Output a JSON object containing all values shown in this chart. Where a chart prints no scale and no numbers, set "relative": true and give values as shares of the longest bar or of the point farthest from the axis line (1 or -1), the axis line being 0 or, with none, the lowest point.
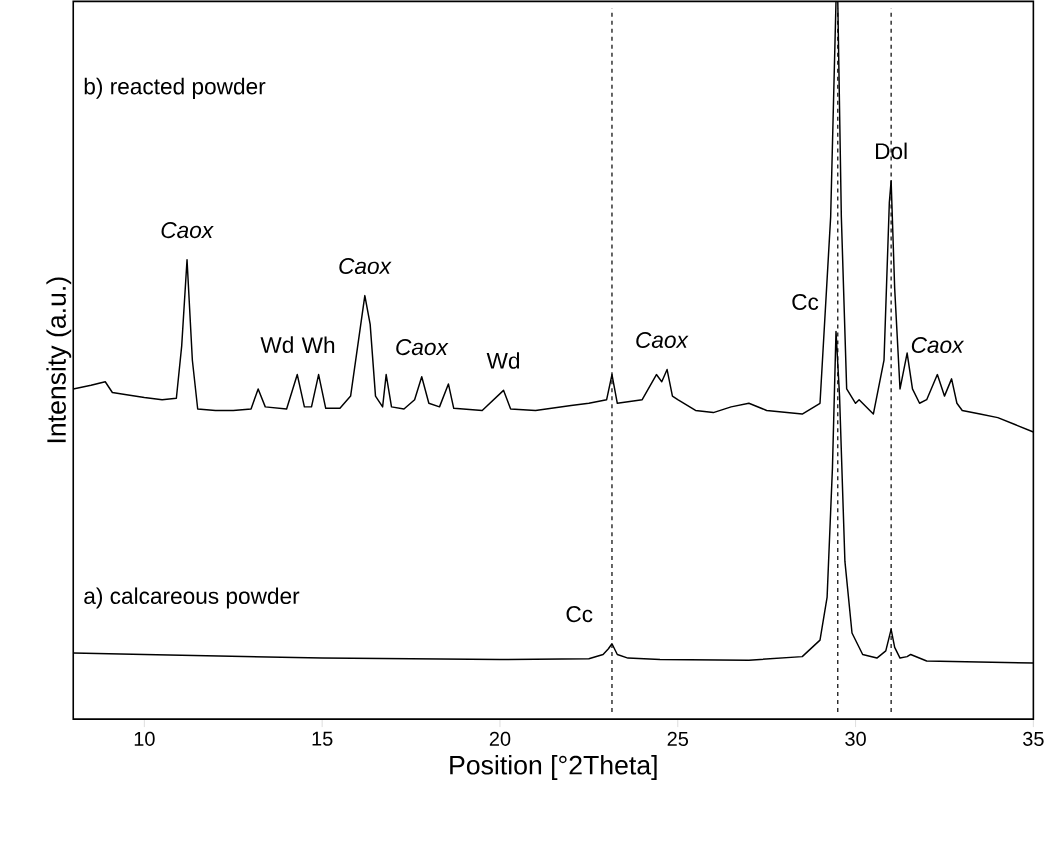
{
  "chart_data": {
    "type": "line",
    "relative": true,
    "xlabel": "Position [°2Theta]",
    "ylabel": "Intensity (a.u.)",
    "xlim": [
      8,
      35
    ],
    "xticks": [
      10,
      15,
      20,
      25,
      30,
      35
    ],
    "tick_labels": "x",
    "legend": false,
    "grid": false,
    "marker": "none",
    "line_style": "solid",
    "series": [
      {
        "color": "#000000",
        "x": [
          8,
          8.5,
          8.9,
          9.1,
          9.5,
          10,
          10.5,
          10.9,
          11.05,
          11.2,
          11.35,
          11.5,
          12,
          12.5,
          13.0,
          13.2,
          13.4,
          14.0,
          14.3,
          14.5,
          14.7,
          14.9,
          15.1,
          15.5,
          15.8,
          16.0,
          16.2,
          16.35,
          16.5,
          16.7,
          16.8,
          16.95,
          17.3,
          17.6,
          17.8,
          18.0,
          18.3,
          18.55,
          18.7,
          19.5,
          20.1,
          20.3,
          21,
          22,
          22.5,
          23.0,
          23.15,
          23.3,
          23.6,
          24.0,
          24.4,
          24.55,
          24.7,
          24.85,
          25.0,
          25.5,
          26,
          26.5,
          27,
          27.5,
          28.5,
          29.0,
          29.3,
          29.45,
          29.5,
          29.6,
          29.75,
          30.0,
          30.1,
          30.5,
          30.8,
          30.95,
          31.0,
          31.1,
          31.25,
          31.45,
          31.6,
          31.8,
          32.0,
          32.3,
          32.5,
          32.7,
          32.85,
          33.0,
          33.5,
          34.0,
          34.5,
          35
        ],
        "values": [
          0.46,
          0.465,
          0.47,
          0.455,
          0.452,
          0.448,
          0.445,
          0.447,
          0.52,
          0.64,
          0.5,
          0.432,
          0.43,
          0.43,
          0.432,
          0.46,
          0.435,
          0.432,
          0.48,
          0.435,
          0.435,
          0.48,
          0.433,
          0.433,
          0.45,
          0.52,
          0.59,
          0.55,
          0.45,
          0.435,
          0.48,
          0.435,
          0.432,
          0.445,
          0.477,
          0.44,
          0.435,
          0.467,
          0.433,
          0.43,
          0.458,
          0.432,
          0.43,
          0.437,
          0.44,
          0.445,
          0.48,
          0.44,
          0.442,
          0.445,
          0.48,
          0.47,
          0.487,
          0.45,
          0.445,
          0.43,
          0.427,
          0.435,
          0.44,
          0.43,
          0.425,
          0.44,
          0.7,
          1.0,
          1.0,
          0.7,
          0.46,
          0.44,
          0.445,
          0.425,
          0.5,
          0.72,
          0.75,
          0.6,
          0.46,
          0.51,
          0.46,
          0.44,
          0.445,
          0.48,
          0.45,
          0.474,
          0.44,
          0.43,
          0.425,
          0.42,
          0.41,
          0.4
        ]
      },
      {
        "color": "#000000",
        "x": [
          8,
          10,
          15,
          20,
          22.5,
          22.9,
          23.05,
          23.15,
          23.3,
          23.6,
          24.5,
          27,
          28.5,
          29.0,
          29.2,
          29.35,
          29.45,
          29.55,
          29.7,
          29.9,
          30.2,
          30.6,
          30.85,
          31.0,
          31.1,
          31.25,
          31.45,
          31.55,
          32,
          35
        ],
        "values": [
          0.092,
          0.09,
          0.085,
          0.083,
          0.084,
          0.09,
          0.098,
          0.105,
          0.09,
          0.085,
          0.083,
          0.082,
          0.087,
          0.11,
          0.17,
          0.35,
          0.54,
          0.45,
          0.22,
          0.12,
          0.09,
          0.085,
          0.095,
          0.125,
          0.1,
          0.085,
          0.087,
          0.09,
          0.081,
          0.078
        ]
      }
    ],
    "ref_lines": [
      {
        "axis": "x",
        "value": 23.15,
        "line_style": "dashed",
        "color": "#000000"
      },
      {
        "axis": "x",
        "value": 29.5,
        "line_style": "dashed",
        "color": "#000000"
      },
      {
        "axis": "x",
        "value": 31.0,
        "line_style": "dashed",
        "color": "#000000"
      }
    ],
    "annotations": [
      "b) reacted powder",
      "a) calcareous powder",
      {
        "text": "*Caox*",
        "x": 11.2,
        "y": 0.64
      },
      {
        "text": "Wd",
        "x": 14.3,
        "y": 0.48
      },
      {
        "text": "Wh",
        "x": 14.9,
        "y": 0.48
      },
      {
        "text": "*Caox*",
        "x": 16.2,
        "y": 0.59
      },
      {
        "text": "*Caox*",
        "x": 17.8,
        "y": 0.477
      },
      {
        "text": "Wd",
        "x": 20.1,
        "y": 0.458
      },
      {
        "text": "*Caox*",
        "x": 24.55,
        "y": 0.487
      },
      {
        "text": "Dol",
        "x": 31.0,
        "y": 0.75
      },
      {
        "text": "*Caox*",
        "x": 32.3,
        "y": 0.48
      },
      {
        "text": "Cc",
        "x": 23.15,
        "y": 0.105
      },
      {
        "text": "Cc",
        "x": 29.5,
        "y": 0.54
      }
    ]
  }
}
